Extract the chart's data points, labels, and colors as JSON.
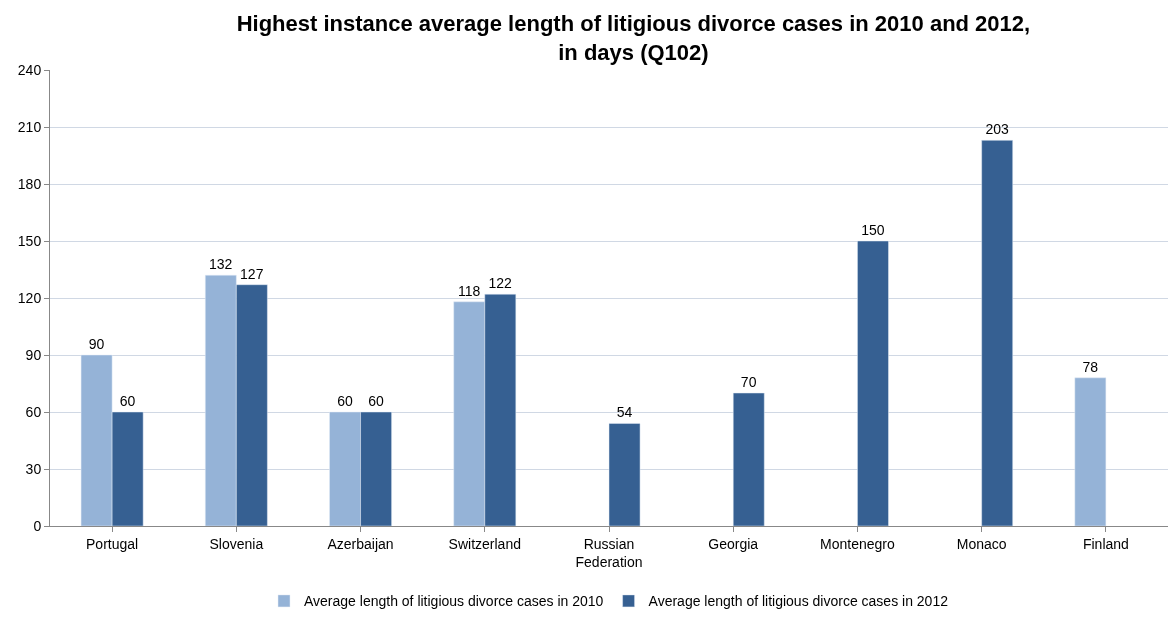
{
  "chart_data": {
    "type": "bar",
    "title": "Highest instance average length of litigious divorce cases in 2010 and 2012, in days (Q102)",
    "categories": [
      "Portugal",
      "Slovenia",
      "Azerbaijan",
      "Switzerland",
      "Russian Federation",
      "Georgia",
      "Montenegro",
      "Monaco",
      "Finland"
    ],
    "series": [
      {
        "name": "Average length of litigious divorce cases in 2010",
        "color": "#95b3d7",
        "values": [
          90,
          132,
          60,
          118,
          null,
          null,
          null,
          null,
          78
        ]
      },
      {
        "name": "Average length of litigious divorce cases in 2012",
        "color": "#366092",
        "values": [
          60,
          127,
          60,
          122,
          54,
          70,
          150,
          203,
          null
        ]
      }
    ],
    "ylim": [
      0,
      240
    ],
    "yticks": [
      0,
      30,
      60,
      90,
      120,
      150,
      180,
      210,
      240
    ],
    "grid": "y",
    "legend": "bottom",
    "data_labels": true
  }
}
